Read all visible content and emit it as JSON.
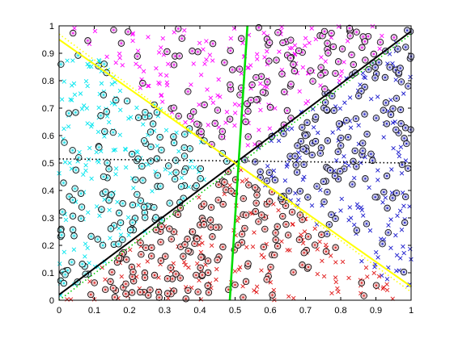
{
  "chart_data": {
    "type": "scatter",
    "title": "",
    "xlabel": "",
    "ylabel": "",
    "xlim": [
      0,
      1
    ],
    "ylim": [
      0,
      1
    ],
    "grid": false,
    "x_ticks": [
      "0",
      "0.1",
      "0.2",
      "0.3",
      "0.4",
      "0.5",
      "0.6",
      "0.7",
      "0.8",
      "0.9",
      "1"
    ],
    "y_ticks": [
      "0",
      "0.1",
      "0.2",
      "0.3",
      "0.4",
      "0.5",
      "0.6",
      "0.7",
      "0.8",
      "0.9",
      "1"
    ],
    "x_tick_values": [
      0,
      0.1,
      0.2,
      0.3,
      0.4,
      0.5,
      0.6,
      0.7,
      0.8,
      0.9,
      1
    ],
    "y_tick_values": [
      0,
      0.1,
      0.2,
      0.3,
      0.4,
      0.5,
      0.6,
      0.7,
      0.8,
      0.9,
      1
    ],
    "point_groups": [
      {
        "color": "#ff00ff",
        "marker": "x",
        "cluster": "top",
        "region": "y > 0.5 + |x - 0.5|",
        "approx_count": 150
      },
      {
        "color": "#00e5ee",
        "marker": "x",
        "cluster": "left",
        "region": "x < 0.5 - |y - 0.5|",
        "approx_count": 150
      },
      {
        "color": "#1a1acd",
        "marker": "x",
        "cluster": "right",
        "region": "x > 0.5 + |y - 0.5|",
        "approx_count": 150
      },
      {
        "color": "#e01818",
        "marker": "x",
        "cluster": "bottom",
        "region": "y < 0.5 - |x - 0.5|",
        "approx_count": 150
      },
      {
        "color": "#000000",
        "marker": "o",
        "fill": "matches region color",
        "note": "circled points scattered over the whole square",
        "approx_count": 560
      }
    ],
    "lines": [
      {
        "color": "#000000",
        "style": "solid",
        "x": [
          0.0,
          1.0
        ],
        "y": [
          0.02,
          0.98
        ]
      },
      {
        "color": "#00cc00",
        "style": "dotted",
        "x": [
          0.0,
          1.0
        ],
        "y": [
          0.0,
          0.97
        ]
      },
      {
        "color": "#000000",
        "style": "dotted",
        "x": [
          0.0,
          1.0
        ],
        "y": [
          0.515,
          0.5
        ]
      },
      {
        "color": "#ffff00",
        "style": "solid",
        "x": [
          0.0,
          1.0
        ],
        "y": [
          0.95,
          0.05
        ]
      },
      {
        "color": "#ffff00",
        "style": "dotted",
        "x": [
          0.0,
          1.0
        ],
        "y": [
          0.97,
          0.03
        ]
      },
      {
        "color": "#00dd00",
        "style": "solid",
        "x": [
          0.485,
          0.535
        ],
        "y": [
          0.0,
          1.0
        ]
      }
    ],
    "colors": {
      "magenta": "#ff00ff",
      "cyan": "#00e5ee",
      "blue": "#1a1acd",
      "red": "#e01818",
      "circle_fill_top": "#e8c6e8",
      "circle_fill_left": "#bfeff2",
      "circle_fill_right": "#c4c4e6",
      "circle_fill_bottom": "#ecc4c4",
      "background": "#ffffff"
    },
    "intersection_point": [
      0.5,
      0.5
    ]
  }
}
